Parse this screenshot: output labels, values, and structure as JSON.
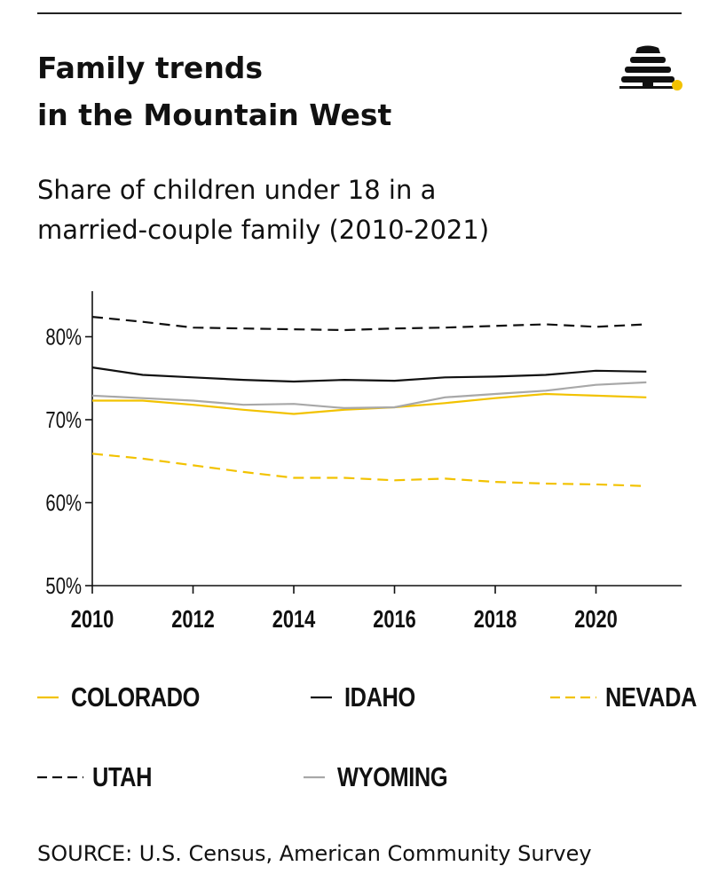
{
  "header": {
    "title_line1": "Family trends",
    "title_line2": "in the Mountain West",
    "subtitle_line1": "Share of children under 18 in a",
    "subtitle_line2": "married-couple family (2010-2021)"
  },
  "footer": {
    "source": "SOURCE: U.S. Census, American Community Survey"
  },
  "colors": {
    "yellow": "#F2C200",
    "black": "#111111",
    "gray": "#A8A8A8",
    "logo_dot": "#F2C200"
  },
  "logo": {
    "icon": "beehive-icon"
  },
  "chart_data": {
    "type": "line",
    "title": "Family trends in the Mountain West",
    "subtitle": "Share of children under 18 in a married-couple family (2010-2021)",
    "xlabel": "",
    "ylabel": "",
    "x": [
      2010,
      2011,
      2012,
      2013,
      2014,
      2015,
      2016,
      2017,
      2018,
      2019,
      2020,
      2021
    ],
    "xlim": [
      2010,
      2021.7
    ],
    "ylim": [
      50,
      85.5
    ],
    "xticks": [
      2010,
      2012,
      2014,
      2016,
      2018,
      2020
    ],
    "xtick_labels": [
      "2010",
      "2012",
      "2014",
      "2016",
      "2018",
      "2020"
    ],
    "yticks": [
      50,
      60,
      70,
      80
    ],
    "ytick_labels": [
      "50%",
      "60%",
      "70%",
      "80%"
    ],
    "grid": false,
    "legend_position": "bottom",
    "series": [
      {
        "name": "COLORADO",
        "color": "#F2C200",
        "dash": "solid",
        "values": [
          72.3,
          72.3,
          71.8,
          71.2,
          70.7,
          71.2,
          71.5,
          72.0,
          72.6,
          73.1,
          72.9,
          72.7
        ]
      },
      {
        "name": "IDAHO",
        "color": "#111111",
        "dash": "solid",
        "values": [
          76.3,
          75.4,
          75.1,
          74.8,
          74.6,
          74.8,
          74.7,
          75.1,
          75.2,
          75.4,
          75.9,
          75.8
        ]
      },
      {
        "name": "NEVADA",
        "color": "#F2C200",
        "dash": "dashed",
        "values": [
          65.9,
          65.3,
          64.5,
          63.7,
          63.0,
          63.0,
          62.7,
          62.9,
          62.5,
          62.3,
          62.2,
          62.0
        ]
      },
      {
        "name": "UTAH",
        "color": "#111111",
        "dash": "dashed",
        "values": [
          82.4,
          81.8,
          81.1,
          81.0,
          80.9,
          80.8,
          81.0,
          81.1,
          81.3,
          81.5,
          81.2,
          81.5
        ]
      },
      {
        "name": "WYOMING",
        "color": "#A8A8A8",
        "dash": "solid",
        "values": [
          72.9,
          72.6,
          72.3,
          71.8,
          71.9,
          71.4,
          71.5,
          72.7,
          73.1,
          73.5,
          74.2,
          74.5
        ]
      }
    ]
  }
}
